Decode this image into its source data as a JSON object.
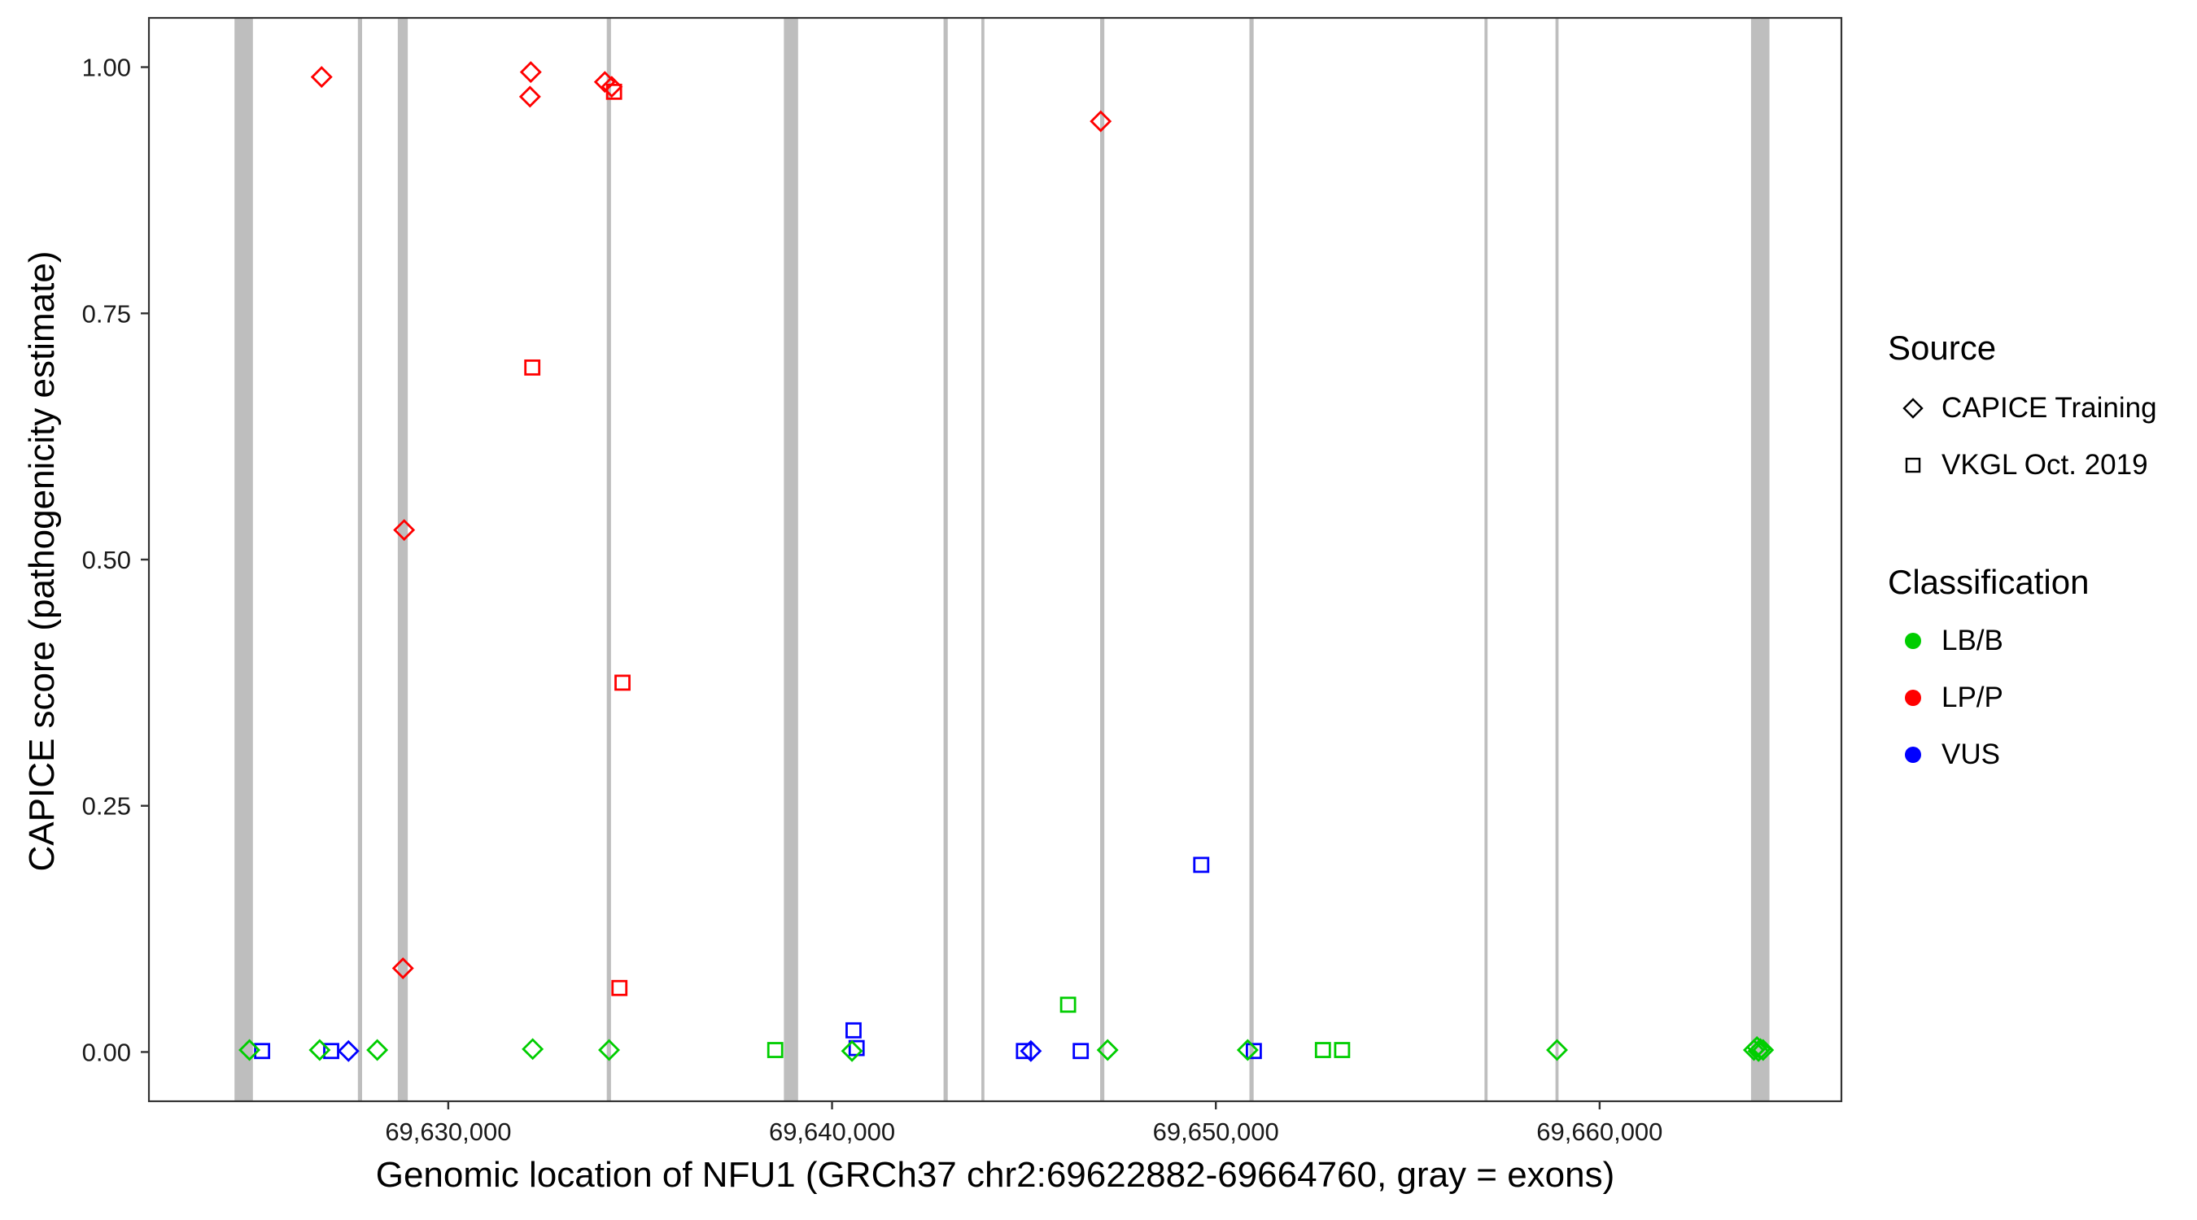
{
  "chart_data": {
    "type": "scatter",
    "xlabel": "Genomic location of NFU1 (GRCh37 chr2:69622882-69664760, gray = exons)",
    "ylabel": "CAPICE score (pathogenicity estimate)",
    "x_domain": [
      69622200,
      69666300
    ],
    "y_domain": [
      -0.05,
      1.05
    ],
    "x_ticks": [
      {
        "value": 69630000,
        "label": "69,630,000"
      },
      {
        "value": 69640000,
        "label": "69,640,000"
      },
      {
        "value": 69650000,
        "label": "69,650,000"
      },
      {
        "value": 69660000,
        "label": "69,660,000"
      }
    ],
    "y_ticks": [
      {
        "value": 0.0,
        "label": "0.00"
      },
      {
        "value": 0.25,
        "label": "0.25"
      },
      {
        "value": 0.5,
        "label": "0.50"
      },
      {
        "value": 0.75,
        "label": "0.75"
      },
      {
        "value": 1.0,
        "label": "1.00"
      }
    ],
    "colors": {
      "LB/B": "#00CD00",
      "LP/P": "#FF0000",
      "VUS": "#0000FF",
      "exon": "#BEBEBE",
      "tick": "#333333",
      "tick_text": "#1a1a1a"
    },
    "exons": [
      {
        "start": 69624430,
        "end": 69624910
      },
      {
        "start": 69627645,
        "end": 69627755
      },
      {
        "start": 69628685,
        "end": 69628945
      },
      {
        "start": 69634130,
        "end": 69634240
      },
      {
        "start": 69638745,
        "end": 69639115
      },
      {
        "start": 69642905,
        "end": 69643015
      },
      {
        "start": 69643890,
        "end": 69643970
      },
      {
        "start": 69646985,
        "end": 69647095
      },
      {
        "start": 69650875,
        "end": 69650985
      },
      {
        "start": 69657000,
        "end": 69657080
      },
      {
        "start": 69658850,
        "end": 69658930
      },
      {
        "start": 69663945,
        "end": 69664425
      }
    ],
    "points": [
      {
        "x": 69626700,
        "y": 0.99,
        "source": "CAPICE Training",
        "classification": "LP/P"
      },
      {
        "x": 69632150,
        "y": 0.995,
        "source": "CAPICE Training",
        "classification": "LP/P"
      },
      {
        "x": 69632130,
        "y": 0.97,
        "source": "CAPICE Training",
        "classification": "LP/P"
      },
      {
        "x": 69634080,
        "y": 0.985,
        "source": "CAPICE Training",
        "classification": "LP/P"
      },
      {
        "x": 69634260,
        "y": 0.98,
        "source": "CAPICE Training",
        "classification": "LP/P"
      },
      {
        "x": 69628850,
        "y": 0.53,
        "source": "CAPICE Training",
        "classification": "LP/P"
      },
      {
        "x": 69628820,
        "y": 0.085,
        "source": "CAPICE Training",
        "classification": "LP/P"
      },
      {
        "x": 69647000,
        "y": 0.945,
        "source": "CAPICE Training",
        "classification": "LP/P"
      },
      {
        "x": 69634320,
        "y": 0.975,
        "source": "VKGL Oct. 2019",
        "classification": "LP/P"
      },
      {
        "x": 69632190,
        "y": 0.695,
        "source": "VKGL Oct. 2019",
        "classification": "LP/P"
      },
      {
        "x": 69634540,
        "y": 0.375,
        "source": "VKGL Oct. 2019",
        "classification": "LP/P"
      },
      {
        "x": 69634460,
        "y": 0.065,
        "source": "VKGL Oct. 2019",
        "classification": "LP/P"
      },
      {
        "x": 69649620,
        "y": 0.19,
        "source": "VKGL Oct. 2019",
        "classification": "VUS"
      },
      {
        "x": 69640560,
        "y": 0.022,
        "source": "VKGL Oct. 2019",
        "classification": "VUS"
      },
      {
        "x": 69640640,
        "y": 0.004,
        "source": "VKGL Oct. 2019",
        "classification": "VUS"
      },
      {
        "x": 69625150,
        "y": 0.001,
        "source": "VKGL Oct. 2019",
        "classification": "VUS"
      },
      {
        "x": 69626950,
        "y": 0.001,
        "source": "VKGL Oct. 2019",
        "classification": "VUS"
      },
      {
        "x": 69645000,
        "y": 0.001,
        "source": "VKGL Oct. 2019",
        "classification": "VUS"
      },
      {
        "x": 69646480,
        "y": 0.001,
        "source": "VKGL Oct. 2019",
        "classification": "VUS"
      },
      {
        "x": 69650990,
        "y": 0.001,
        "source": "VKGL Oct. 2019",
        "classification": "VUS"
      },
      {
        "x": 69627400,
        "y": 0.001,
        "source": "CAPICE Training",
        "classification": "VUS"
      },
      {
        "x": 69645180,
        "y": 0.001,
        "source": "CAPICE Training",
        "classification": "VUS"
      },
      {
        "x": 69624820,
        "y": 0.002,
        "source": "CAPICE Training",
        "classification": "LB/B"
      },
      {
        "x": 69626650,
        "y": 0.002,
        "source": "CAPICE Training",
        "classification": "LB/B"
      },
      {
        "x": 69628150,
        "y": 0.002,
        "source": "CAPICE Training",
        "classification": "LB/B"
      },
      {
        "x": 69632200,
        "y": 0.003,
        "source": "CAPICE Training",
        "classification": "LB/B"
      },
      {
        "x": 69634190,
        "y": 0.002,
        "source": "CAPICE Training",
        "classification": "LB/B"
      },
      {
        "x": 69640520,
        "y": 0.001,
        "source": "CAPICE Training",
        "classification": "LB/B"
      },
      {
        "x": 69647180,
        "y": 0.002,
        "source": "CAPICE Training",
        "classification": "LB/B"
      },
      {
        "x": 69650830,
        "y": 0.002,
        "source": "CAPICE Training",
        "classification": "LB/B"
      },
      {
        "x": 69658890,
        "y": 0.002,
        "source": "CAPICE Training",
        "classification": "LB/B"
      },
      {
        "x": 69664020,
        "y": 0.002,
        "source": "CAPICE Training",
        "classification": "LB/B"
      },
      {
        "x": 69664100,
        "y": 0.005,
        "source": "CAPICE Training",
        "classification": "LB/B"
      },
      {
        "x": 69664140,
        "y": 0.001,
        "source": "CAPICE Training",
        "classification": "LB/B"
      },
      {
        "x": 69664190,
        "y": 0.003,
        "source": "CAPICE Training",
        "classification": "LB/B"
      },
      {
        "x": 69664260,
        "y": 0.002,
        "source": "CAPICE Training",
        "classification": "LB/B"
      },
      {
        "x": 69638520,
        "y": 0.002,
        "source": "VKGL Oct. 2019",
        "classification": "LB/B"
      },
      {
        "x": 69646150,
        "y": 0.048,
        "source": "VKGL Oct. 2019",
        "classification": "LB/B"
      },
      {
        "x": 69652790,
        "y": 0.002,
        "source": "VKGL Oct. 2019",
        "classification": "LB/B"
      },
      {
        "x": 69653290,
        "y": 0.002,
        "source": "VKGL Oct. 2019",
        "classification": "LB/B"
      }
    ],
    "legend": {
      "source": {
        "title": "Source",
        "items": [
          {
            "label": "CAPICE Training",
            "shape": "diamond"
          },
          {
            "label": "VKGL Oct. 2019",
            "shape": "square"
          }
        ]
      },
      "classification": {
        "title": "Classification",
        "items": [
          {
            "label": "LB/B",
            "color": "#00CD00"
          },
          {
            "label": "LP/P",
            "color": "#FF0000"
          },
          {
            "label": "VUS",
            "color": "#0000FF"
          }
        ]
      }
    }
  }
}
